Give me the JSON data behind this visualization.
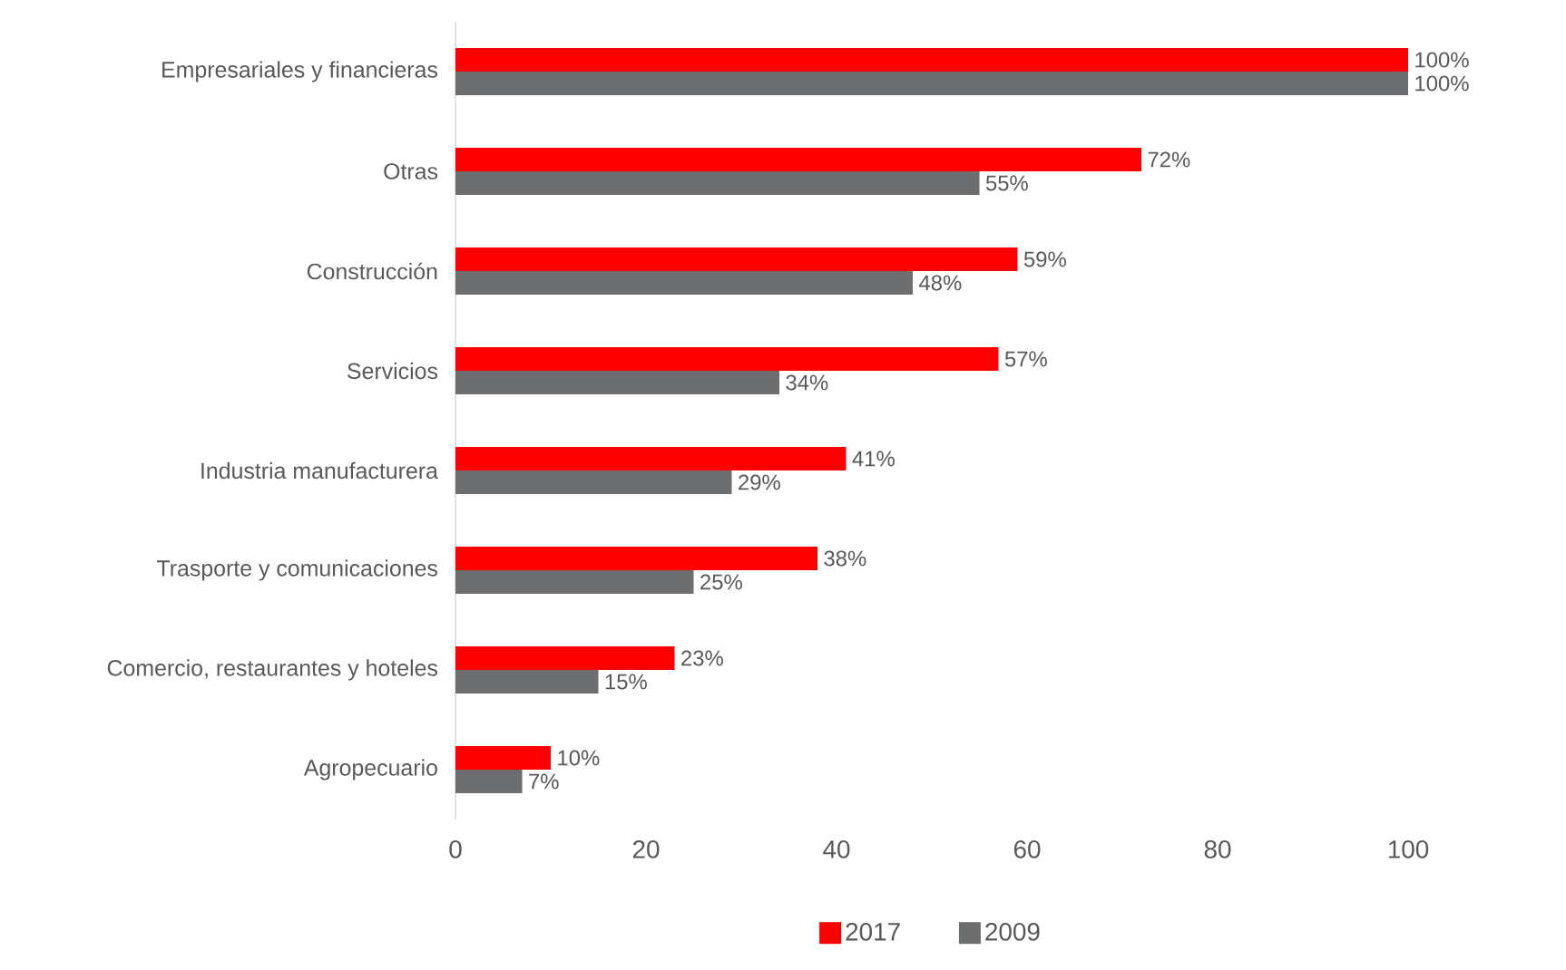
{
  "chart_data": {
    "type": "bar",
    "orientation": "horizontal",
    "categories": [
      "Empresariales y financieras",
      "Otras",
      "Construcción",
      "Servicios",
      "Industria manufacturera",
      "Trasporte y comunicaciones",
      "Comercio, restaurantes y hoteles",
      "Agropecuario"
    ],
    "series": [
      {
        "name": "2017",
        "color": "#ff0000",
        "values": [
          100,
          72,
          59,
          57,
          41,
          38,
          23,
          10
        ],
        "value_labels": [
          "100%",
          "72%",
          "59%",
          "57%",
          "41%",
          "38%",
          "23%",
          "10%"
        ]
      },
      {
        "name": "2009",
        "color": "#6d6e70",
        "values": [
          100,
          55,
          48,
          34,
          29,
          25,
          15,
          7
        ],
        "value_labels": [
          "100%",
          "55%",
          "48%",
          "34%",
          "29%",
          "25%",
          "15%",
          "7%"
        ]
      }
    ],
    "xlim": [
      0,
      100
    ],
    "xticks": [
      0,
      20,
      40,
      60,
      80,
      100
    ],
    "legend": "bottom"
  }
}
